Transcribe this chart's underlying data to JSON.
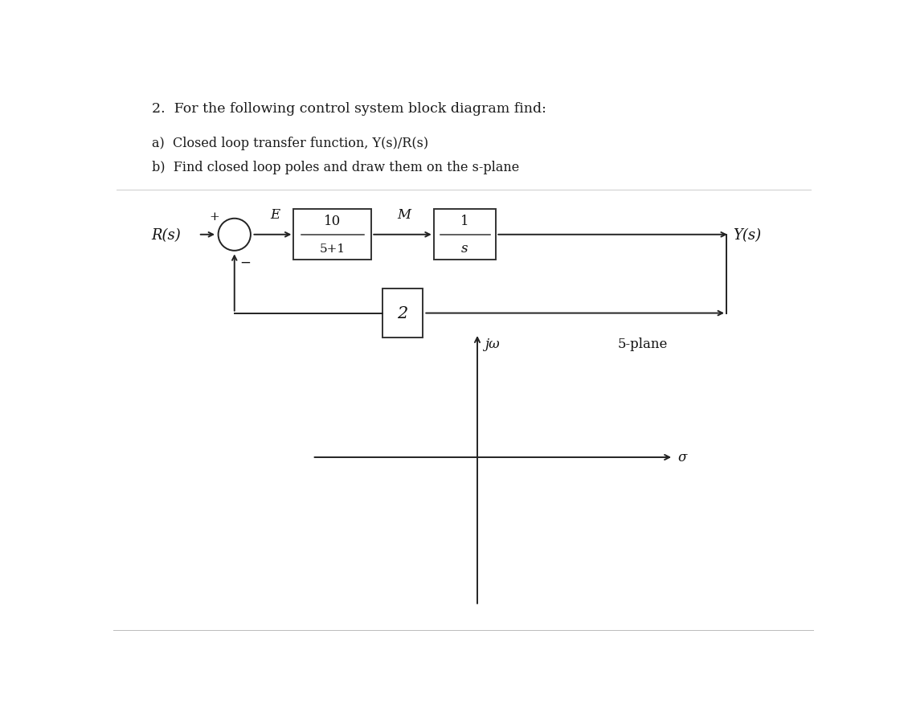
{
  "background_color": "#ffffff",
  "title_text": "2.  For the following control system block diagram find:",
  "subtitle_a": "a)  Closed loop transfer function, Y(s)/R(s)",
  "subtitle_b": "b)  Find closed loop poles and draw them on the s-plane",
  "R_label": "R(s)",
  "Y_label": "Y(s)",
  "E_label": "E",
  "M_label": "M",
  "plus_label": "+",
  "minus_label": "−",
  "block1_top": "10",
  "block1_bot": "5+1",
  "block2_top": "1",
  "block2_bot": "s",
  "feedback_label": "2",
  "jw_label": "jω",
  "splane_label": "5-plane",
  "sigma_label": "σ",
  "lw": 1.4
}
